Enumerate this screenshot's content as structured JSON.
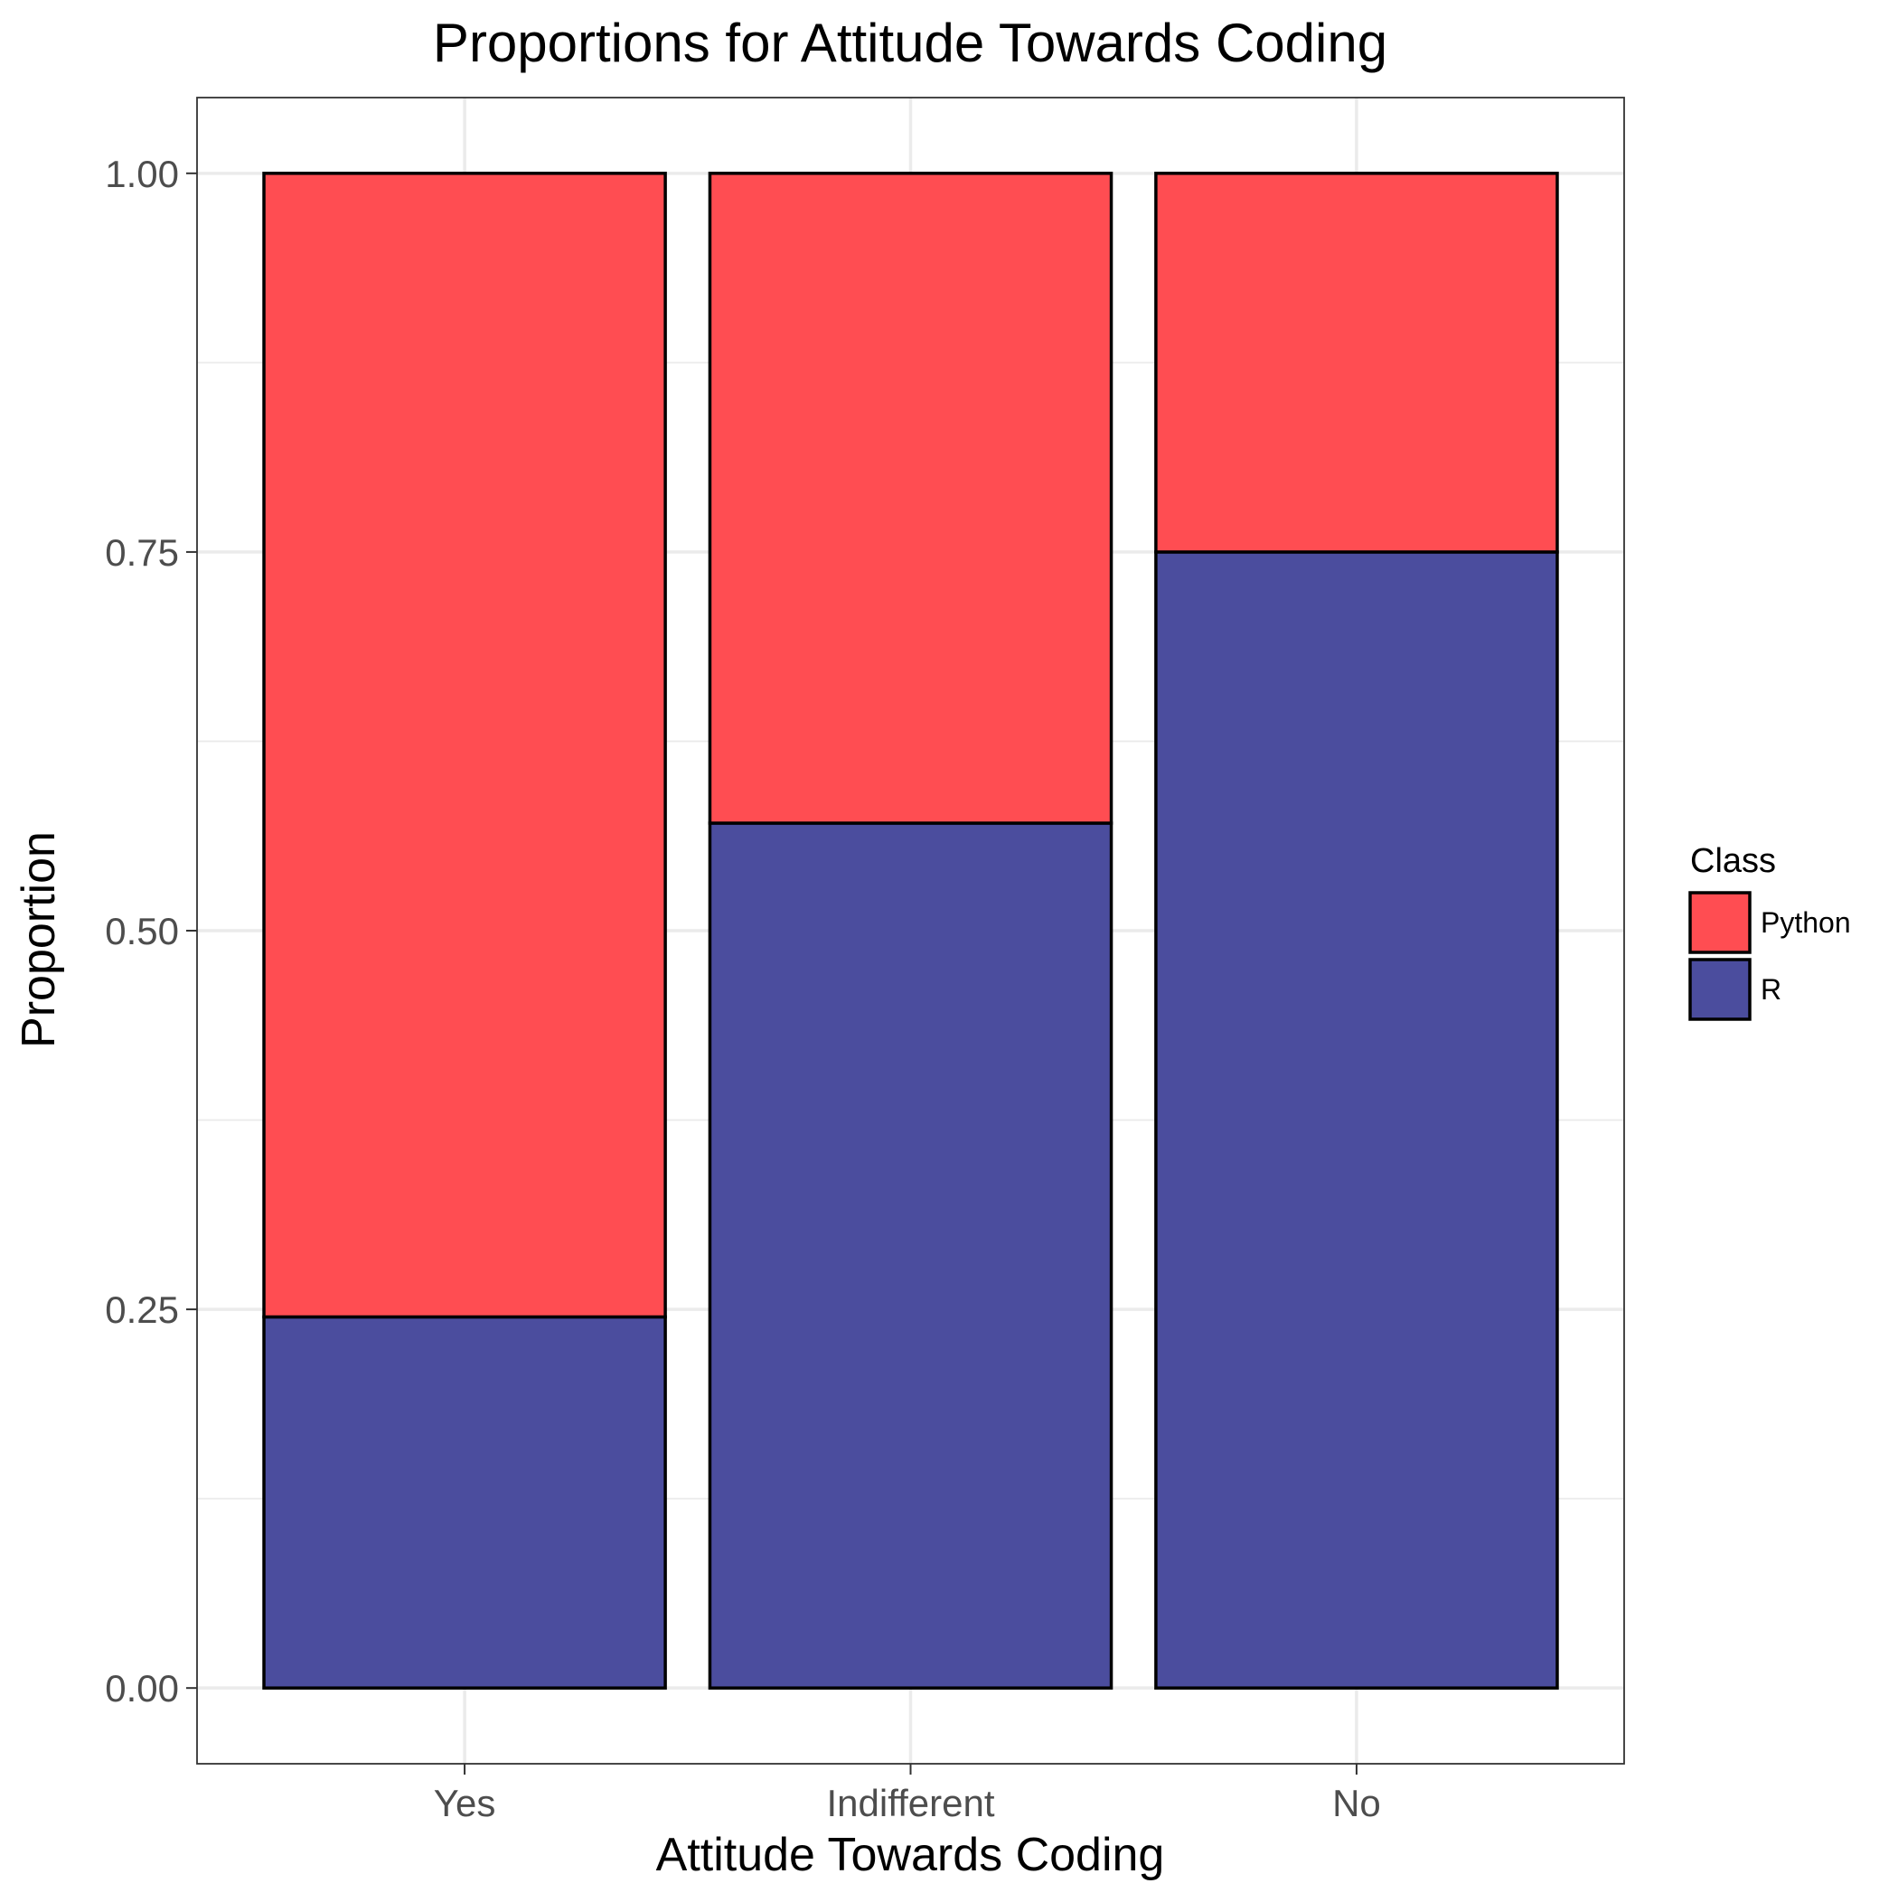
{
  "chart_data": {
    "type": "bar",
    "stacked": true,
    "title": "Proportions for Attitude Towards Coding",
    "xlabel": "Attitude Towards Coding",
    "ylabel": "Proportion",
    "categories": [
      "Yes",
      "Indifferent",
      "No"
    ],
    "ylim": [
      -0.05,
      1.05
    ],
    "yticks": [
      0.0,
      0.25,
      0.5,
      0.75,
      1.0
    ],
    "ytick_labels": [
      "0.00",
      "0.25",
      "0.50",
      "0.75",
      "1.00"
    ],
    "grid": true,
    "legend_position": "right",
    "legend_title": "Class",
    "series": [
      {
        "name": "Python",
        "color": "#ff4d52",
        "values": [
          0.755,
          0.429,
          0.25
        ]
      },
      {
        "name": "R",
        "color": "#4b4d9e",
        "values": [
          0.245,
          0.571,
          0.75
        ]
      }
    ]
  }
}
